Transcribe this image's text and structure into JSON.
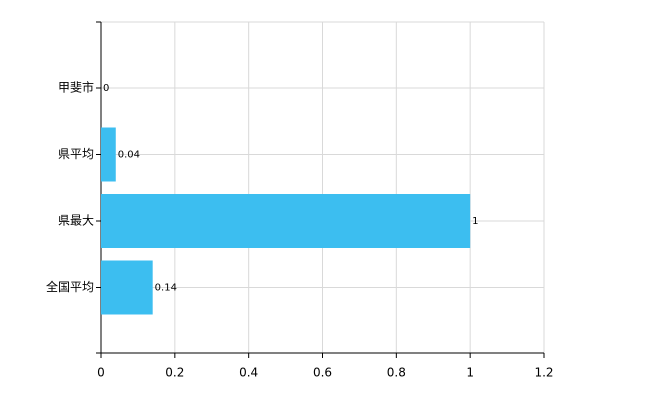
{
  "chart_data": {
    "type": "barh",
    "categories": [
      "甲斐市",
      "県平均",
      "県最大",
      "全国平均"
    ],
    "values": [
      0,
      0.04,
      1,
      0.14
    ],
    "color": "#3cbef0",
    "xlim": [
      0,
      1.2
    ],
    "xticks": [
      0,
      0.2,
      0.4,
      0.6,
      0.8,
      1,
      1.2
    ],
    "grid": true
  }
}
